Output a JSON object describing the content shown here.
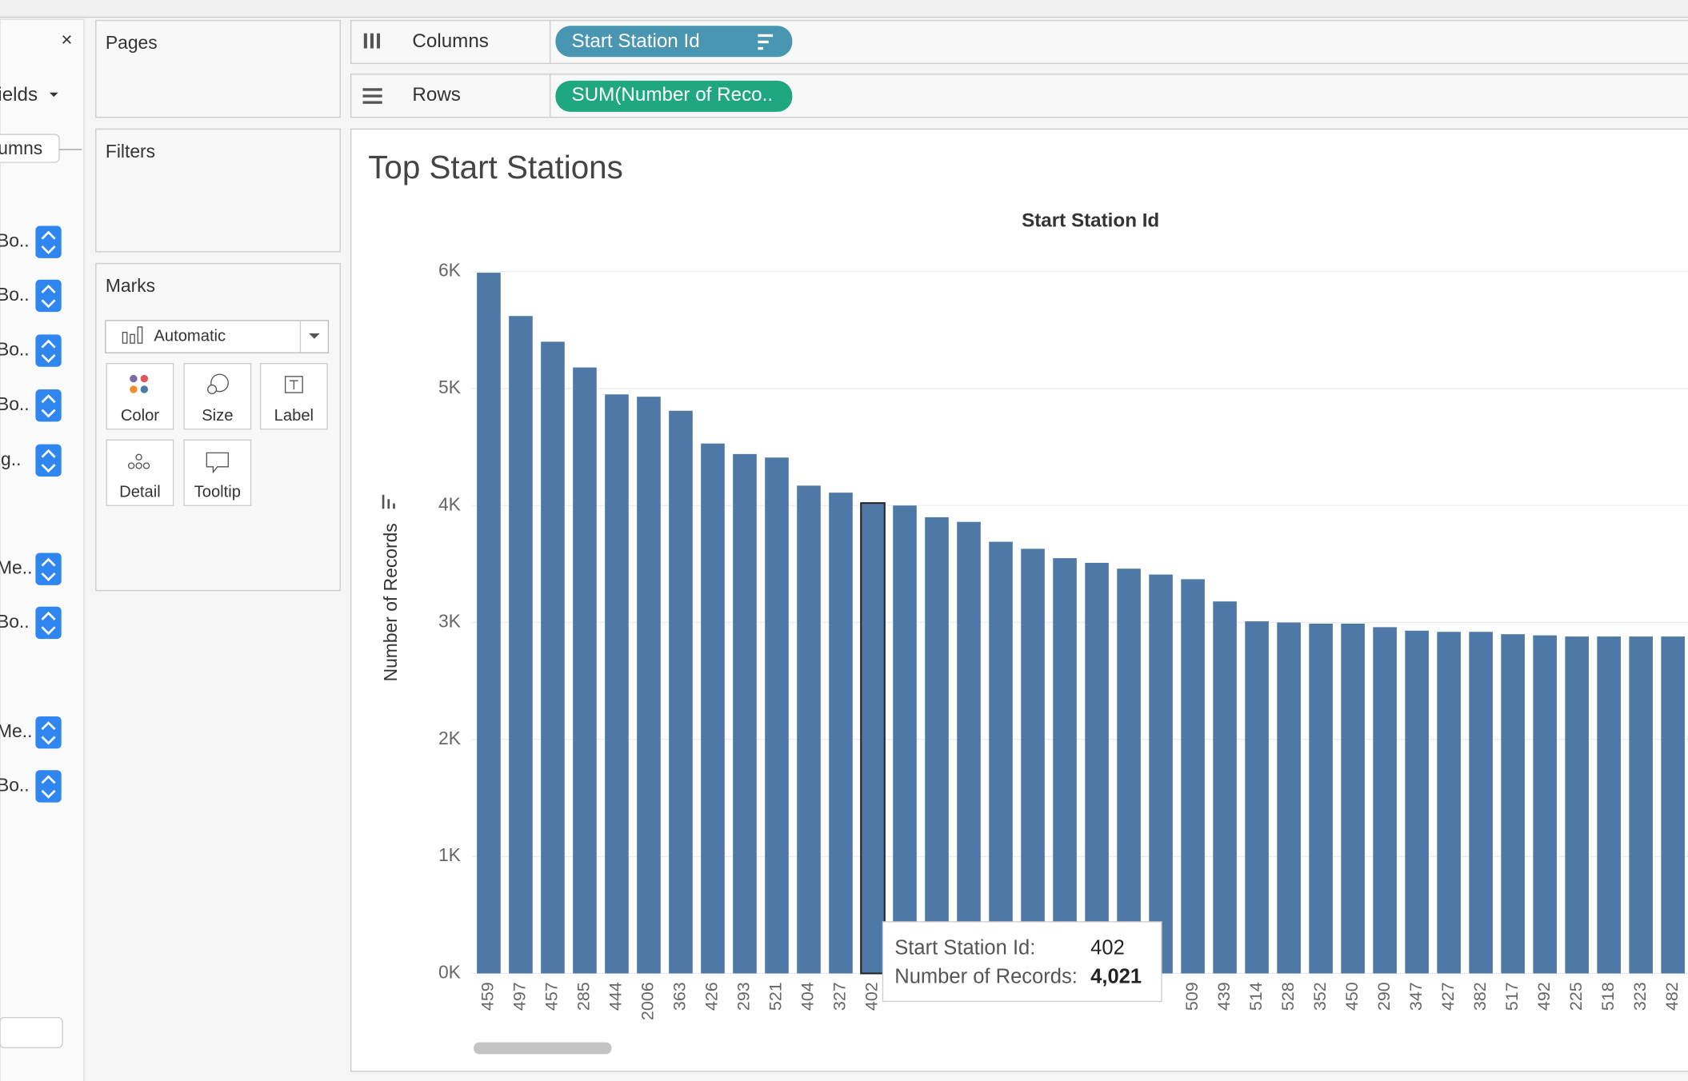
{
  "left_panel": {
    "fields_label": "ields",
    "tab": "umns",
    "items": [
      "Bo..",
      "Bo..",
      "Bo..",
      "Bo..",
      "ig..",
      "Me..",
      "Bo..",
      "Me..",
      "Bo.."
    ]
  },
  "cards": {
    "pages": "Pages",
    "filters": "Filters",
    "marks": "Marks",
    "mark_type": "Automatic",
    "buttons": [
      "Color",
      "Size",
      "Label",
      "Detail",
      "Tooltip"
    ]
  },
  "shelves": {
    "columns": "Columns",
    "columns_pill": "Start Station Id",
    "rows": "Rows",
    "rows_pill": "SUM(Number of Reco.."
  },
  "chart_data": {
    "type": "bar",
    "title": "Top Start Stations",
    "x_label": "Start Station Id",
    "y_label": "Number of Records",
    "categories": [
      "459",
      "497",
      "457",
      "285",
      "444",
      "2006",
      "363",
      "426",
      "293",
      "521",
      "404",
      "327",
      "402",
      null,
      null,
      null,
      null,
      null,
      null,
      null,
      null,
      null,
      "509",
      "439",
      "514",
      "528",
      "352",
      "450",
      "290",
      "347",
      "427",
      "382",
      "517",
      "492",
      "225",
      "518",
      "323",
      "482"
    ],
    "values": [
      5990,
      5620,
      5400,
      5180,
      4950,
      4930,
      4810,
      4530,
      4440,
      4410,
      4170,
      4110,
      4021,
      4000,
      3900,
      3860,
      3690,
      3630,
      3550,
      3510,
      3460,
      3410,
      3370,
      3180,
      3010,
      3000,
      2990,
      2990,
      2960,
      2930,
      2920,
      2920,
      2900,
      2890,
      2880,
      2880,
      2880,
      2880
    ],
    "color": "#4e79a7",
    "ylim": [
      0,
      6280
    ],
    "yticks": [
      {
        "value": 0,
        "label": "0K"
      },
      {
        "value": 1000,
        "label": "1K"
      },
      {
        "value": 2000,
        "label": "2K"
      },
      {
        "value": 3000,
        "label": "3K"
      },
      {
        "value": 4000,
        "label": "4K"
      },
      {
        "value": 5000,
        "label": "5K"
      },
      {
        "value": 6000,
        "label": "6K"
      }
    ],
    "grid": true,
    "tooltip": {
      "field": "Start Station Id:",
      "category": "402",
      "measure": "Number of Records:",
      "value_label": "4,021"
    }
  }
}
